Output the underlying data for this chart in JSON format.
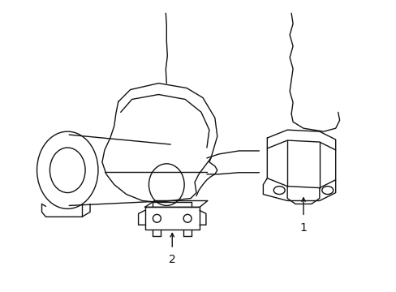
{
  "background_color": "#ffffff",
  "line_color": "#111111",
  "line_width": 1.0,
  "figure_width": 4.89,
  "figure_height": 3.6,
  "dpi": 100,
  "label1_text": "1",
  "label2_text": "2",
  "font_size": 10
}
